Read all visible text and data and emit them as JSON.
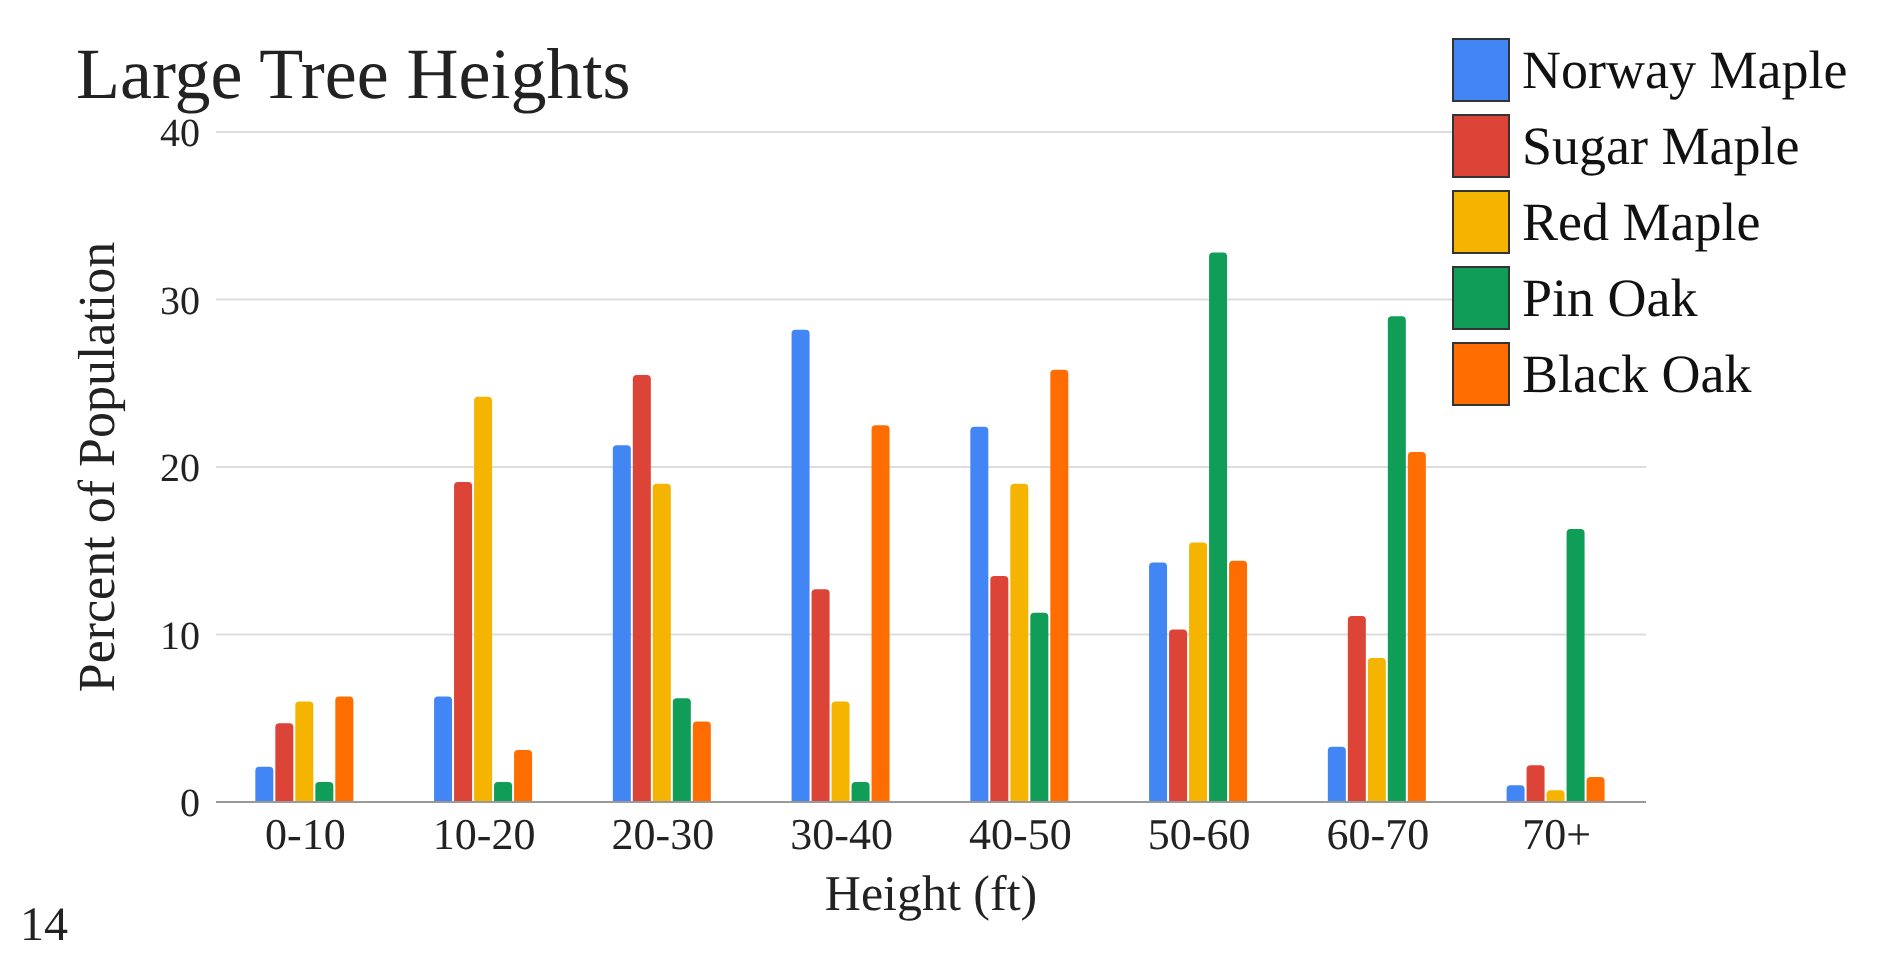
{
  "chart_data": {
    "type": "bar",
    "title": "Large Tree Heights",
    "xlabel": "Height (ft)",
    "ylabel": "Percent of Population",
    "categories": [
      "0-10",
      "10-20",
      "20-30",
      "30-40",
      "40-50",
      "50-60",
      "60-70",
      "70+"
    ],
    "series": [
      {
        "name": "Norway Maple",
        "color": "#4285f4",
        "values": [
          2.1,
          6.3,
          21.3,
          28.2,
          22.4,
          14.3,
          3.3,
          1.0
        ]
      },
      {
        "name": "Sugar Maple",
        "color": "#db4437",
        "values": [
          4.7,
          19.1,
          25.5,
          12.7,
          13.5,
          10.3,
          11.1,
          2.2
        ]
      },
      {
        "name": "Red Maple",
        "color": "#f4b400",
        "values": [
          6.0,
          24.2,
          19.0,
          6.0,
          19.0,
          15.5,
          8.6,
          0.7
        ]
      },
      {
        "name": "Pin Oak",
        "color": "#0f9d58",
        "values": [
          1.2,
          1.2,
          6.2,
          1.2,
          11.3,
          32.8,
          29.0,
          16.3
        ]
      },
      {
        "name": "Black Oak",
        "color": "#ff6d00",
        "values": [
          6.3,
          3.1,
          4.8,
          22.5,
          25.8,
          14.4,
          20.9,
          1.5
        ]
      }
    ],
    "ylim": [
      0,
      40
    ],
    "yticks": [
      0,
      10,
      20,
      30,
      40
    ],
    "grid": "y",
    "legend": "top right",
    "annotations": [
      "14"
    ]
  }
}
